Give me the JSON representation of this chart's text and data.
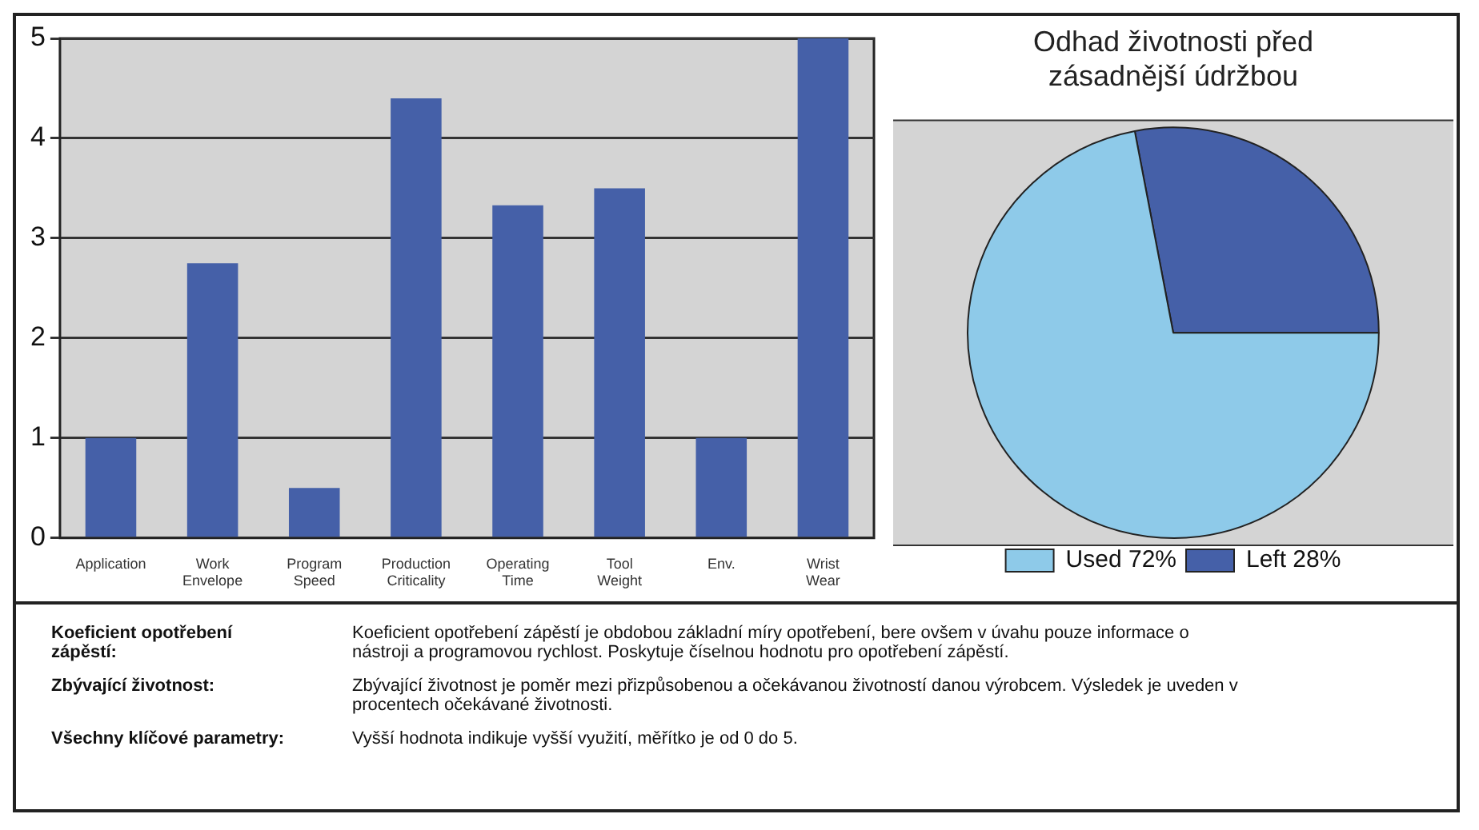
{
  "chart_data": [
    {
      "type": "bar",
      "categories": [
        "Application",
        "Work Envelope",
        "Program Speed",
        "Production Criticality",
        "Operating Time",
        "Tool Weight",
        "Env.",
        "Wrist Wear"
      ],
      "values": [
        1,
        2.75,
        0.5,
        4.4,
        3.33,
        3.5,
        1,
        5
      ],
      "color": "#4560a8",
      "ylim": [
        0,
        5
      ],
      "yticks": [
        0,
        1,
        2,
        3,
        4,
        5
      ],
      "grid": "y",
      "legend": false
    },
    {
      "type": "pie",
      "title": "Odhad životnosti před zásadnější údržbou",
      "categories": [
        "Left 28%",
        "Used 72%"
      ],
      "values": [
        28,
        72
      ],
      "colors": [
        "#4560a8",
        "#8ecae9"
      ],
      "legend": "bottom"
    },
    {
      "type": "other",
      "annotations": [
        "Koeficient opotřebení zápěstí:",
        "Koeficient opotřebení zápěstí je obdobou základní míry opotřebení, bere ovšem v úvahu pouze informace o nástroji a programovou rychlost. Poskytuje číselnou hodnotu pro opotřebení zápěstí.",
        "Zbývající životnost:",
        "Zbývající životnost je poměr mezi přizpůsobenou a očekávanou životností danou výrobcem. Výsledek je uveden v procentech očekávané životnosti.",
        "Všechny klíčové parametry:",
        "Vyšší hodnota indikuje vyšší využití, měřítko je od 0 do 5."
      ]
    }
  ]
}
